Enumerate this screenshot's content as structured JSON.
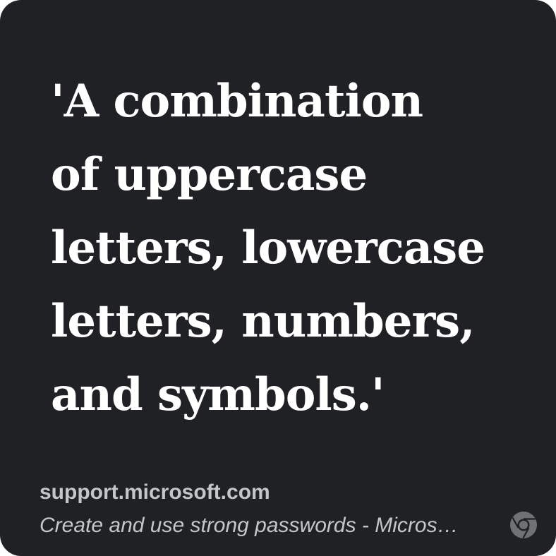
{
  "quote": {
    "lines": [
      "'A combination",
      "of uppercase",
      "letters, lowercase",
      "letters, numbers,",
      "and symbols.'"
    ]
  },
  "source": {
    "domain": "support.microsoft.com",
    "title": "Create and use strong passwords - Micros…"
  },
  "icons": {
    "browser": "chrome-icon"
  },
  "colors": {
    "background": "#202124",
    "quote_text": "#ffffff",
    "source_text": "#c4c6ca",
    "icon": "#6f7175"
  }
}
